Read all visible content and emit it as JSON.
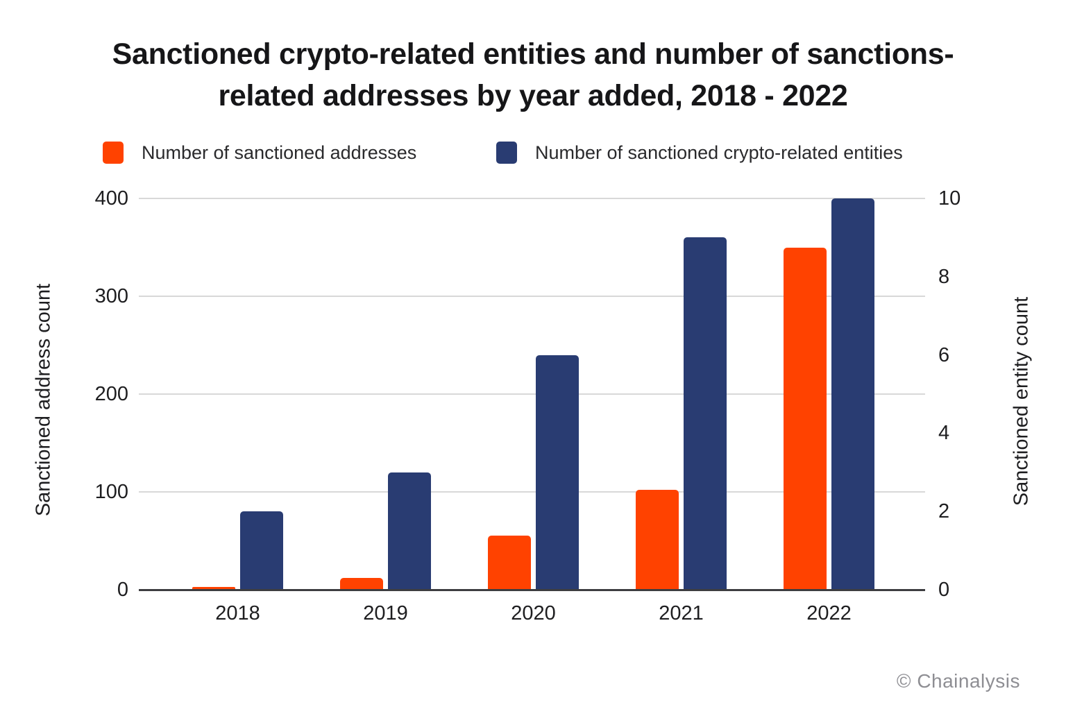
{
  "title": {
    "lines": [
      "Sanctioned crypto-related entities and number of sanctions-",
      "related addresses by year added, 2018 - 2022"
    ]
  },
  "legend": {
    "items": [
      {
        "label": "Number of sanctioned addresses",
        "color": "#ff4200"
      },
      {
        "label": "Number of sanctioned crypto-related entities",
        "color": "#293c72"
      }
    ]
  },
  "footer": {
    "copyright": "© Chainalysis"
  },
  "chart_data": {
    "type": "bar",
    "title": "Sanctioned crypto-related entities and number of sanctions-related addresses by year added, 2018 - 2022",
    "categories": [
      "2018",
      "2019",
      "2020",
      "2021",
      "2022"
    ],
    "series": [
      {
        "name": "Number of sanctioned addresses",
        "axis": "left",
        "color": "#ff4200",
        "values": [
          3,
          12,
          55,
          102,
          350
        ]
      },
      {
        "name": "Number of sanctioned crypto-related entities",
        "axis": "right",
        "color": "#293c72",
        "values": [
          2,
          3,
          6,
          9,
          10
        ]
      }
    ],
    "left_axis": {
      "label": "Sanctioned address count",
      "min": 0,
      "max": 400,
      "ticks": [
        0,
        100,
        200,
        300,
        400
      ]
    },
    "right_axis": {
      "label": "Sanctioned entity count",
      "min": 0,
      "max": 10,
      "ticks": [
        0,
        2,
        4,
        6,
        8,
        10
      ]
    },
    "grid": "horizontal gridlines at left-axis ticks",
    "legend_position": "top",
    "attribution": "© Chainalysis"
  }
}
